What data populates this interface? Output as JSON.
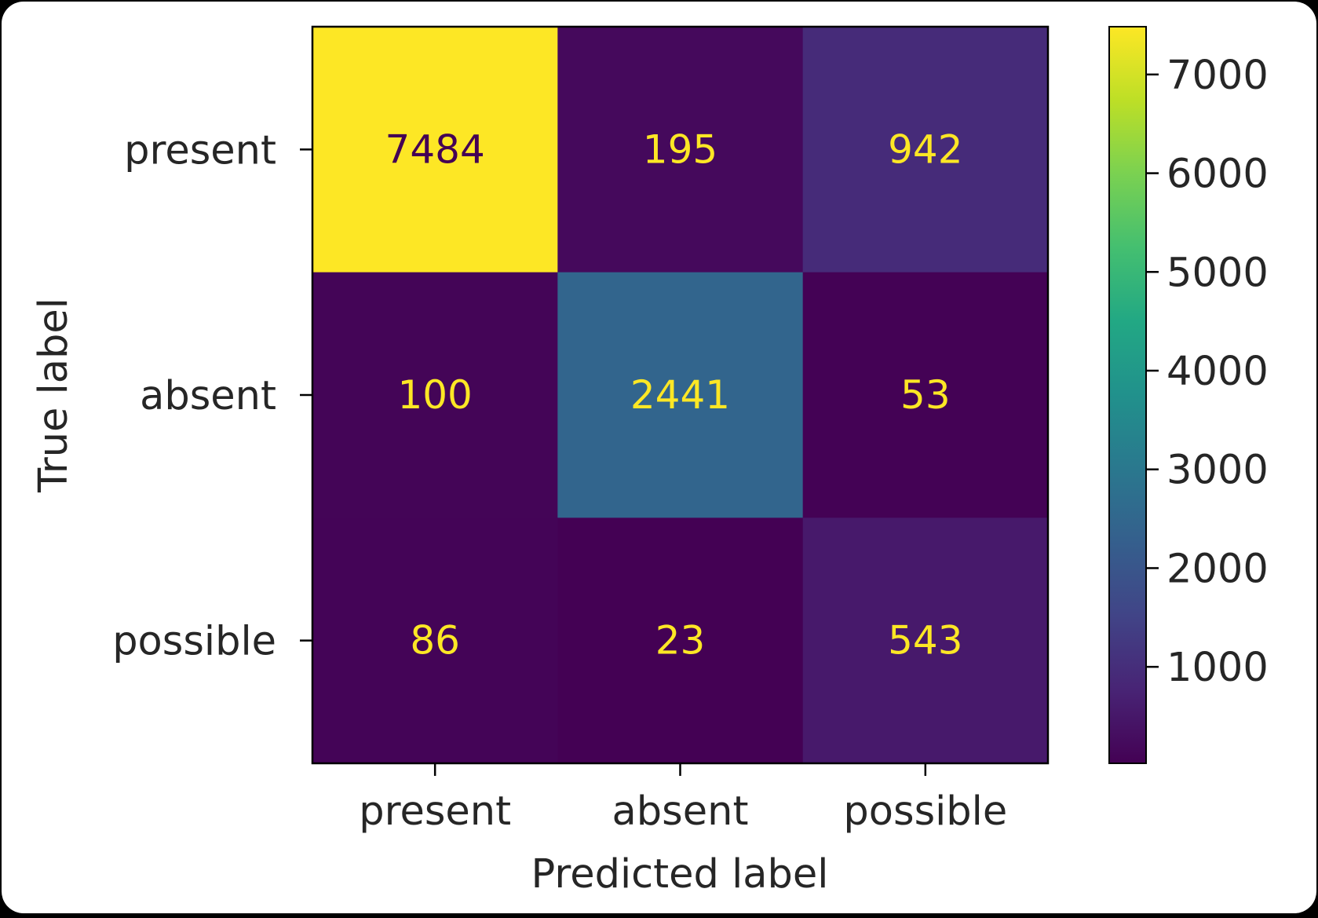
{
  "chart_data": {
    "type": "heatmap",
    "x_categories": [
      "present",
      "absent",
      "possible"
    ],
    "y_categories": [
      "present",
      "absent",
      "possible"
    ],
    "matrix": [
      [
        7484,
        195,
        942
      ],
      [
        100,
        2441,
        53
      ],
      [
        86,
        23,
        543
      ]
    ],
    "xlabel": "Predicted label",
    "ylabel": "True label",
    "colormap": "viridis",
    "color_range": [
      23,
      7484
    ],
    "colorbar_ticks": [
      1000,
      2000,
      3000,
      4000,
      5000,
      6000,
      7000
    ],
    "colorbar_tick_labels": [
      "1000",
      "2000",
      "3000",
      "4000",
      "5000",
      "6000",
      "7000"
    ],
    "grid": false
  }
}
